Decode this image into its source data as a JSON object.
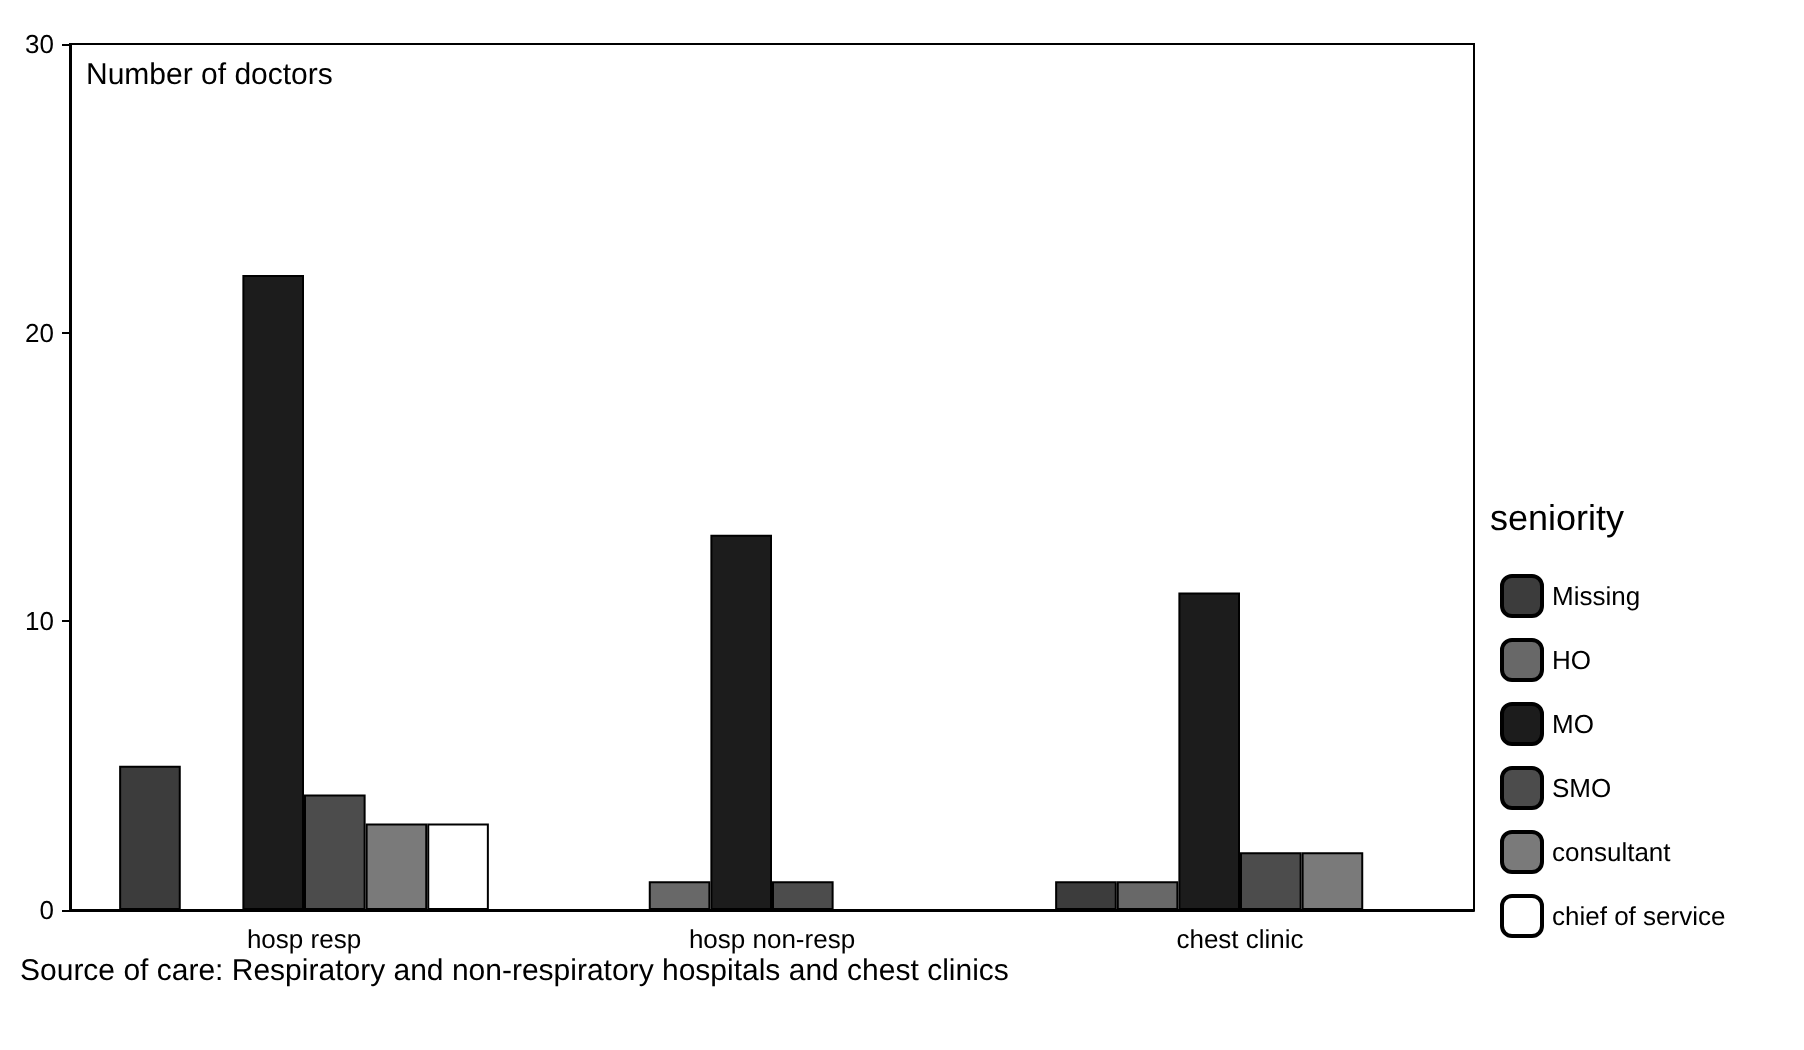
{
  "chart_data": {
    "type": "bar",
    "ylabel": "Number of doctors",
    "xlabel": "Source of care: Respiratory and non-respiratory hospitals and chest clinics",
    "legend_title": "seniority",
    "categories": [
      "hosp resp",
      "hosp non-resp",
      "chest clinic"
    ],
    "series": [
      {
        "name": "Missing",
        "color": "#3c3c3c",
        "values": [
          5,
          null,
          1
        ]
      },
      {
        "name": "HO",
        "color": "#686868",
        "values": [
          null,
          1,
          1
        ]
      },
      {
        "name": "MO",
        "color": "#1c1c1c",
        "values": [
          22,
          13,
          11
        ]
      },
      {
        "name": "SMO",
        "color": "#4c4c4c",
        "values": [
          4,
          1,
          2
        ]
      },
      {
        "name": "consultant",
        "color": "#7a7a7a",
        "values": [
          3,
          null,
          2
        ]
      },
      {
        "name": "chief of service",
        "color": "#ffffff",
        "values": [
          3,
          null,
          null
        ]
      }
    ],
    "ylim": [
      0,
      30
    ],
    "yticks": [
      0,
      10,
      20,
      30
    ],
    "grid": false,
    "legend": "right"
  }
}
